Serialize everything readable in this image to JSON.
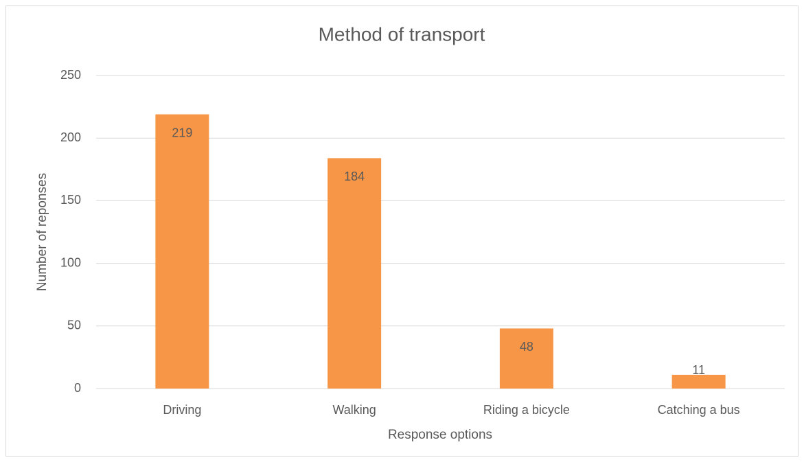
{
  "chart_data": {
    "type": "bar",
    "title": "Method of transport",
    "x_label": "Response options",
    "y_label": "Number of reponses",
    "categories": [
      "Driving",
      "Walking",
      "Riding a bicycle",
      "Catching a bus"
    ],
    "values": [
      219,
      184,
      48,
      11
    ],
    "color": "#f79646",
    "ylim": [
      0,
      250
    ],
    "yticks": [
      0,
      50,
      100,
      150,
      200,
      250
    ],
    "grid": true
  }
}
